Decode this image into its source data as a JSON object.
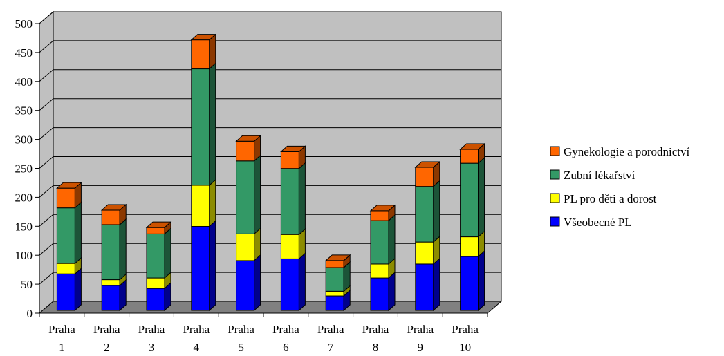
{
  "chart_data": {
    "type": "bar",
    "stacked": true,
    "three_d": true,
    "categories": [
      [
        "Praha",
        "1"
      ],
      [
        "Praha",
        "2"
      ],
      [
        "Praha",
        "3"
      ],
      [
        "Praha",
        "4"
      ],
      [
        "Praha",
        "5"
      ],
      [
        "Praha",
        "6"
      ],
      [
        "Praha",
        "7"
      ],
      [
        "Praha",
        "8"
      ],
      [
        "Praha",
        "9"
      ],
      [
        "Praha",
        "10"
      ]
    ],
    "series": [
      {
        "name": "Všeobecné PL",
        "color": "#0000ff",
        "values": [
          63,
          43,
          38,
          145,
          86,
          89,
          25,
          56,
          80,
          93
        ]
      },
      {
        "name": "PL pro děti a dorost",
        "color": "#ffff00",
        "values": [
          18,
          10,
          18,
          71,
          46,
          42,
          8,
          24,
          38,
          34
        ]
      },
      {
        "name": "Zubní lékařství",
        "color": "#339966",
        "values": [
          96,
          95,
          76,
          201,
          126,
          114,
          41,
          75,
          96,
          127
        ]
      },
      {
        "name": "Gynekologie a porodnictví",
        "color": "#ff6600",
        "values": [
          34,
          25,
          11,
          50,
          34,
          29,
          12,
          17,
          33,
          24
        ]
      }
    ],
    "y_ticks": [
      0,
      50,
      100,
      150,
      200,
      250,
      300,
      350,
      400,
      450,
      500
    ],
    "ylim": [
      0,
      500
    ],
    "grid": true,
    "legend_position": "right",
    "legend_order": [
      3,
      2,
      1,
      0
    ],
    "wall_color": "#c0c0c0",
    "floor_color": "#808080",
    "title": "",
    "xlabel": "",
    "ylabel": ""
  }
}
